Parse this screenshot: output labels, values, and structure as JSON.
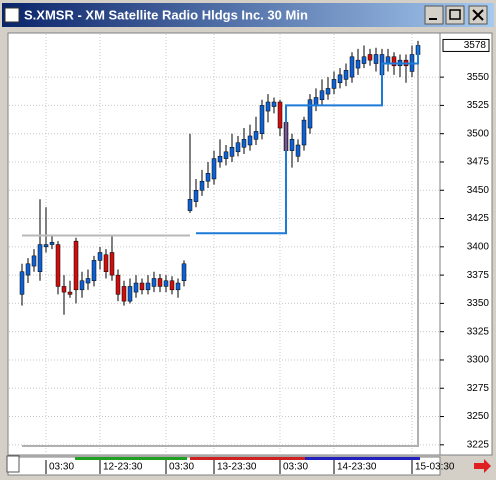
{
  "chart_data": {
    "type": "candlestick",
    "title": "S.XMSR - XM Satellite Radio Hldgs Inc. 30 Min",
    "categories": [
      null,
      null,
      null,
      null,
      "03:30",
      null,
      null,
      null,
      null,
      null,
      null,
      null,
      null,
      "12-23:30",
      null,
      null,
      null,
      null,
      null,
      null,
      null,
      null,
      null,
      null,
      "03:30",
      null,
      null,
      null,
      null,
      null,
      null,
      null,
      "13-23:30",
      null,
      null,
      null,
      null,
      null,
      null,
      null,
      null,
      null,
      null,
      "03:30",
      null,
      null,
      null,
      null,
      null,
      null,
      null,
      null,
      "14-23:30",
      null,
      null,
      null,
      null,
      null,
      null,
      null,
      null,
      null,
      null,
      null,
      null,
      "15-03:30",
      null
    ],
    "open": [
      3358,
      3375,
      3383,
      3378,
      3400,
      3402,
      3402,
      3365,
      3360,
      3405,
      3362,
      3368,
      3370,
      3388,
      3393,
      3395,
      3375,
      3365,
      3352,
      3360,
      3368,
      3362,
      3365,
      3372,
      3365,
      3370,
      3362,
      3370,
      3432,
      3440,
      3450,
      3458,
      3460,
      3475,
      3478,
      3480,
      3484,
      3488,
      3490,
      3495,
      3500,
      3520,
      3524,
      3528,
      3510,
      3485,
      3480,
      3490,
      3505,
      3525,
      3530,
      3535,
      3540,
      3545,
      3548,
      3550,
      3558,
      3562,
      3570,
      3562,
      3552,
      3562,
      3568,
      3560,
      3565,
      3555,
      3570
    ],
    "high": [
      3385,
      3390,
      3398,
      3442,
      3435,
      3410,
      3405,
      3375,
      3370,
      3408,
      3378,
      3380,
      3392,
      3400,
      3398,
      3410,
      3380,
      3370,
      3372,
      3375,
      3372,
      3375,
      3378,
      3376,
      3375,
      3374,
      3372,
      3388,
      3500,
      3460,
      3468,
      3475,
      3485,
      3495,
      3490,
      3500,
      3498,
      3505,
      3508,
      3515,
      3530,
      3535,
      3532,
      3530,
      3515,
      3500,
      3495,
      3515,
      3535,
      3540,
      3548,
      3550,
      3555,
      3558,
      3562,
      3572,
      3575,
      3578,
      3575,
      3576,
      3575,
      3575,
      3572,
      3570,
      3570,
      3578,
      3582
    ],
    "low": [
      3348,
      3368,
      3378,
      3370,
      3395,
      3398,
      3358,
      3340,
      3355,
      3350,
      3355,
      3362,
      3365,
      3380,
      3372,
      3370,
      3352,
      3348,
      3350,
      3355,
      3358,
      3358,
      3360,
      3360,
      3360,
      3358,
      3355,
      3365,
      3430,
      3435,
      3445,
      3452,
      3455,
      3470,
      3472,
      3475,
      3480,
      3482,
      3485,
      3490,
      3495,
      3510,
      3518,
      3498,
      3478,
      3470,
      3475,
      3485,
      3500,
      3520,
      3525,
      3530,
      3535,
      3540,
      3542,
      3545,
      3552,
      3558,
      3560,
      3555,
      3548,
      3555,
      3552,
      3550,
      3545,
      3550,
      3565
    ],
    "close": [
      3378,
      3385,
      3392,
      3402,
      3402,
      3404,
      3365,
      3360,
      3358,
      3362,
      3370,
      3372,
      3388,
      3395,
      3378,
      3375,
      3358,
      3352,
      3365,
      3368,
      3362,
      3368,
      3372,
      3365,
      3370,
      3362,
      3368,
      3385,
      3442,
      3450,
      3458,
      3465,
      3478,
      3480,
      3484,
      3488,
      3492,
      3495,
      3498,
      3502,
      3525,
      3528,
      3528,
      3505,
      3485,
      3495,
      3490,
      3512,
      3530,
      3532,
      3538,
      3540,
      3548,
      3552,
      3556,
      3568,
      3565,
      3568,
      3565,
      3570,
      3570,
      3568,
      3560,
      3565,
      3560,
      3570,
      3578
    ],
    "up_color": "#1060d0",
    "down_color": "#cc1010",
    "lines": [
      {
        "color": "#b8b8b8",
        "step": true,
        "values": [
          3410,
          3410,
          3410,
          3410,
          3410,
          3410,
          3410,
          3410,
          3410,
          3410,
          3410,
          3410,
          3410,
          3410,
          3410,
          3410,
          3410,
          3410,
          3410,
          3410,
          3410,
          3410,
          3410,
          3410,
          3410,
          3410,
          3410,
          3410,
          3410,
          null,
          null,
          null,
          null,
          null,
          null,
          null,
          null,
          null,
          null,
          null,
          null,
          null,
          null,
          null,
          null,
          null,
          null,
          null,
          null,
          null,
          null,
          null,
          null,
          null,
          null,
          null,
          null,
          null,
          null,
          null,
          null,
          null,
          null,
          null,
          null,
          null,
          null
        ]
      },
      {
        "color": "#b0b0b0",
        "step": true,
        "values": [
          3224,
          3224,
          3224,
          3224,
          3224,
          3224,
          3224,
          3224,
          3224,
          3224,
          3224,
          3224,
          3224,
          3224,
          3224,
          3224,
          3224,
          3224,
          3224,
          3224,
          3224,
          3224,
          3224,
          3224,
          3224,
          3224,
          3224,
          3224,
          3224,
          3224,
          3224,
          3224,
          3224,
          3224,
          3224,
          3224,
          3224,
          3224,
          3224,
          3224,
          3224,
          3224,
          3224,
          3224,
          3224,
          3224,
          3224,
          3224,
          3224,
          3224,
          3224,
          3224,
          3224,
          3224,
          3224,
          3224,
          3224,
          3224,
          3224,
          3224,
          3224,
          3224,
          3224,
          3224,
          3224,
          3224,
          3578
        ]
      },
      {
        "color": "#1c7ad8",
        "step": true,
        "values": [
          null,
          null,
          null,
          null,
          null,
          null,
          null,
          null,
          null,
          null,
          null,
          null,
          null,
          null,
          null,
          null,
          null,
          null,
          null,
          null,
          null,
          null,
          null,
          null,
          null,
          null,
          null,
          null,
          null,
          3412,
          3412,
          3412,
          3412,
          3412,
          3412,
          3412,
          3412,
          3412,
          3412,
          3412,
          3412,
          3412,
          3412,
          3412,
          3525,
          3525,
          3525,
          3525,
          3525,
          3525,
          3525,
          3525,
          3525,
          3525,
          3525,
          3525,
          3525,
          3525,
          3525,
          3525,
          3562,
          3562,
          3562,
          3562,
          3562,
          3562,
          3578
        ]
      }
    ],
    "ylim": [
      3216,
      3589
    ],
    "yticks": [
      3225,
      3250,
      3275,
      3300,
      3325,
      3350,
      3375,
      3400,
      3425,
      3450,
      3475,
      3500,
      3525,
      3550
    ],
    "last_price": 3578,
    "grid": true
  }
}
